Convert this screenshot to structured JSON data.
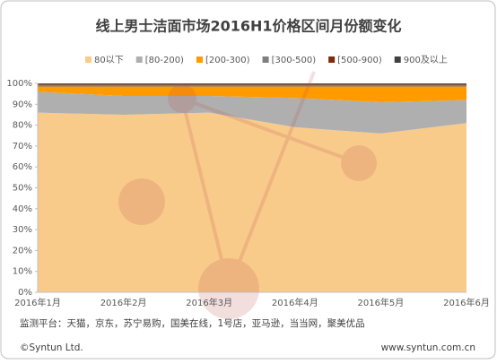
{
  "chart_data": {
    "type": "stacked_area",
    "title": "线上男士洁面市场2016H1价格区间月份额变化",
    "categories": [
      "2016年1月",
      "2016年2月",
      "2016年3月",
      "2016年4月",
      "2016年5月",
      "2016年6月"
    ],
    "series": [
      {
        "name": "80以下",
        "color": "#F9CB8B",
        "values": [
          86,
          85,
          86,
          79,
          76,
          81
        ]
      },
      {
        "name": "[80-200)",
        "color": "#AFAFAF",
        "values": [
          10,
          9,
          8,
          14,
          15,
          11
        ]
      },
      {
        "name": "[200-300)",
        "color": "#FF9A00",
        "values": [
          2.5,
          4.5,
          4.5,
          5.5,
          7.5,
          6.5
        ]
      },
      {
        "name": "[300-500)",
        "color": "#7F7F7F",
        "values": [
          0.8,
          0.8,
          0.8,
          0.8,
          0.8,
          0.8
        ]
      },
      {
        "name": "[500-900)",
        "color": "#7F2A0A",
        "values": [
          0.3,
          0.3,
          0.3,
          0.3,
          0.3,
          0.3
        ]
      },
      {
        "name": "900及以上",
        "color": "#404040",
        "values": [
          0.4,
          0.4,
          0.4,
          0.4,
          0.4,
          0.4
        ]
      }
    ],
    "ylim": [
      0,
      100
    ],
    "yticks": [
      {
        "value": 0,
        "label": "0%"
      },
      {
        "value": 10,
        "label": "10%"
      },
      {
        "value": 20,
        "label": "20%"
      },
      {
        "value": 30,
        "label": "30%"
      },
      {
        "value": 40,
        "label": "40%"
      },
      {
        "value": 50,
        "label": "50%"
      },
      {
        "value": 60,
        "label": "60%"
      },
      {
        "value": 70,
        "label": "70%"
      },
      {
        "value": 80,
        "label": "80%"
      },
      {
        "value": 90,
        "label": "90%"
      },
      {
        "value": 100,
        "label": "100%"
      }
    ],
    "legend": "top",
    "source": "监测平台：天猫，京东，苏宁易购，国美在线，1号店，亚马逊，当当网，聚美优品",
    "copyright": "©Syntun Ltd.",
    "website": "www.syntun.com.cn"
  }
}
